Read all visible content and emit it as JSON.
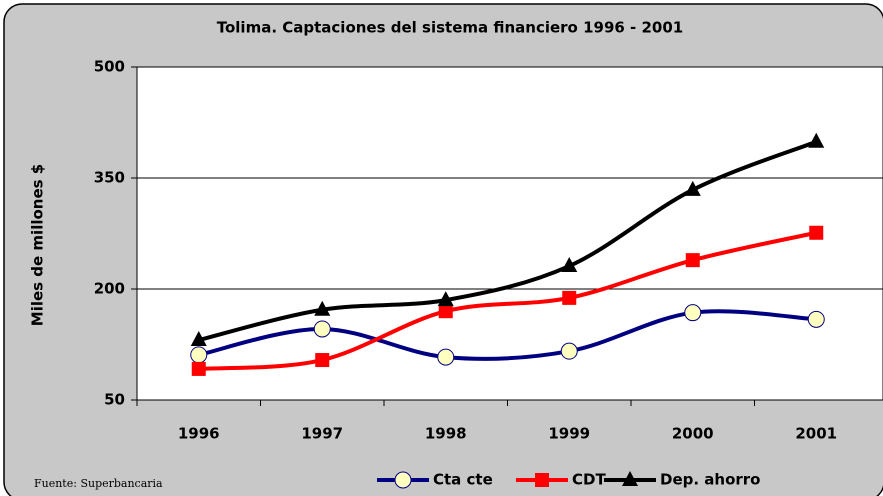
{
  "chart_data": {
    "type": "line",
    "title": "Tolima. Captaciones del sistema financiero 1996 - 2001",
    "y_label": "Miles de millones $",
    "source": "Fuente: Superbancaria",
    "categories": [
      "1996",
      "1997",
      "1998",
      "1999",
      "2000",
      "2001"
    ],
    "series": [
      {
        "name": "Cta cte",
        "color": "#000080",
        "marker": "circle",
        "values": [
          111,
          146,
          108,
          116,
          168,
          159
        ]
      },
      {
        "name": "CDT",
        "color": "#ff0000",
        "marker": "square",
        "values": [
          92,
          104,
          170,
          188,
          239,
          276
        ]
      },
      {
        "name": "Dep. ahorro",
        "color": "#000000",
        "marker": "triangle",
        "values": [
          131,
          172,
          185,
          231,
          334,
          399
        ]
      }
    ],
    "ylim": [
      50,
      500
    ],
    "yticks": [
      50,
      200,
      350,
      500
    ],
    "grid": true
  }
}
